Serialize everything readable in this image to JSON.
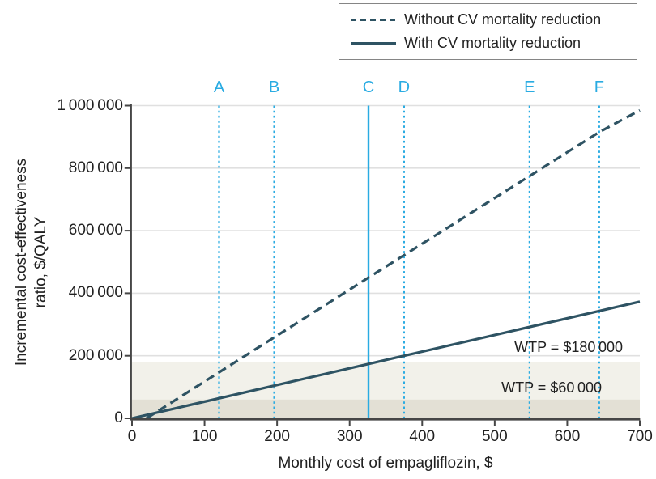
{
  "colors": {
    "accent_cyan": "#29abe2",
    "series_teal": "#2e5363",
    "grid": "#e0e0e0",
    "axis": "#464646",
    "text": "#212121",
    "band_light": "#f2f1ea",
    "band_dark": "#e3e0d5"
  },
  "legend": {
    "items": [
      {
        "label": "Without CV mortality reduction",
        "style": "dashed"
      },
      {
        "label": "With CV mortality reduction",
        "style": "solid"
      }
    ]
  },
  "axes": {
    "x": {
      "title": "Monthly cost of empagliflozin, $"
    },
    "y": {
      "title_line1": "Incremental cost-effectiveness",
      "title_line2": "ratio, $/QALY"
    }
  },
  "chart_data": {
    "type": "line",
    "title": "",
    "xlabel": "Monthly cost of empagliflozin, $",
    "ylabel": "Incremental cost-effectiveness ratio, $/QALY",
    "xlim": [
      0,
      700
    ],
    "ylim": [
      0,
      1000000
    ],
    "xticks": [
      0,
      100,
      200,
      300,
      400,
      500,
      600,
      700
    ],
    "xtick_labels": [
      "0",
      "100",
      "200",
      "300",
      "400",
      "500",
      "600",
      "700"
    ],
    "yticks": [
      0,
      200000,
      400000,
      600000,
      800000,
      1000000
    ],
    "ytick_labels": [
      "0",
      "200 000",
      "400 000",
      "600 000",
      "800 000",
      "1 000 000"
    ],
    "grid": "horizontal",
    "legend_position": "top-right",
    "series": [
      {
        "name": "Without CV mortality reduction",
        "style": "dashed",
        "points": [
          [
            20,
            0
          ],
          [
            326,
            450000
          ],
          [
            644,
            915000
          ],
          [
            700,
            985000
          ]
        ]
      },
      {
        "name": "With CV mortality reduction",
        "style": "solid",
        "points": [
          [
            0,
            0
          ],
          [
            375,
            200000
          ],
          [
            700,
            373000
          ]
        ]
      }
    ],
    "scenario_lines": [
      {
        "label": "A",
        "x": 120,
        "style": "dotted"
      },
      {
        "label": "B",
        "x": 196,
        "style": "dotted"
      },
      {
        "label": "C",
        "x": 326,
        "style": "solid"
      },
      {
        "label": "D",
        "x": 375,
        "style": "dotted"
      },
      {
        "label": "E",
        "x": 548,
        "style": "dotted"
      },
      {
        "label": "F",
        "x": 644,
        "style": "dotted"
      }
    ],
    "wtp_bands": [
      {
        "label": "WTP = $180 000",
        "value": 180000,
        "fill": "#f2f1ea"
      },
      {
        "label": "WTP = $60 000",
        "value": 60000,
        "fill": "#e3e0d5"
      }
    ]
  }
}
